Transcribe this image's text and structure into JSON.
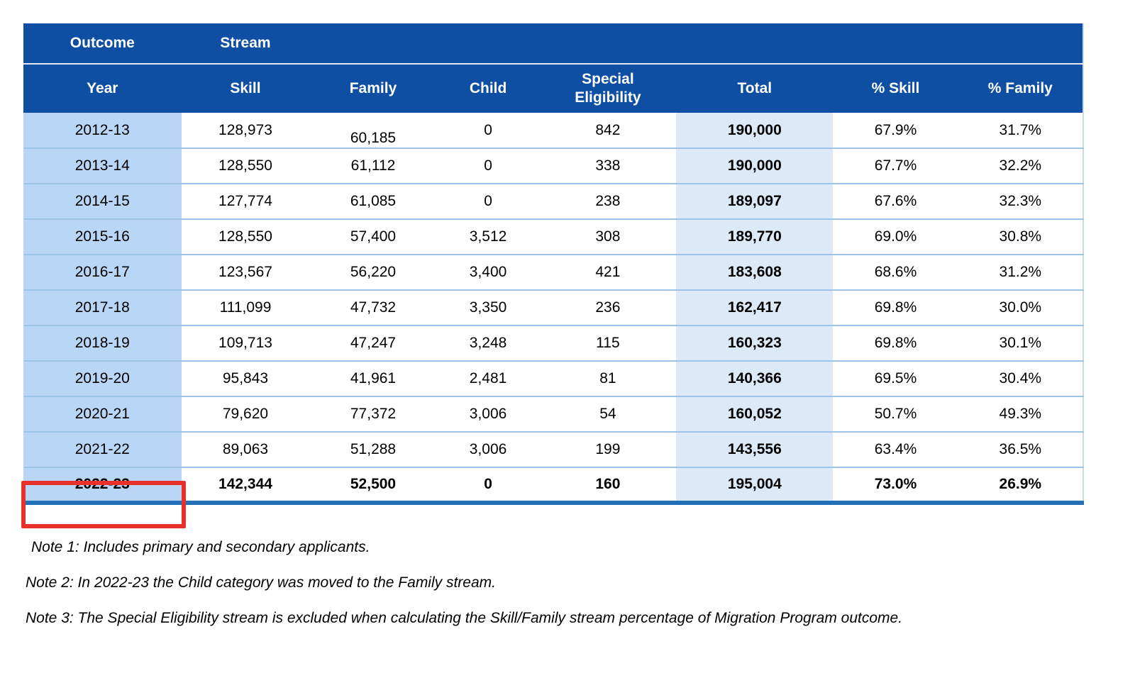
{
  "table": {
    "group_header": {
      "outcome": "Outcome",
      "stream": "Stream"
    },
    "columns": [
      "Year",
      "Skill",
      "Family",
      "Child",
      "Special Eligibility",
      "Total",
      "% Skill",
      "% Family"
    ],
    "rows": [
      {
        "year": "2012-13",
        "skill": "128,973",
        "family": "60,185",
        "child": "0",
        "special": "842",
        "total": "190,000",
        "pct_skill": "67.9%",
        "pct_family": "31.7%"
      },
      {
        "year": "2013-14",
        "skill": "128,550",
        "family": "61,112",
        "child": "0",
        "special": "338",
        "total": "190,000",
        "pct_skill": "67.7%",
        "pct_family": "32.2%"
      },
      {
        "year": "2014-15",
        "skill": "127,774",
        "family": "61,085",
        "child": "0",
        "special": "238",
        "total": "189,097",
        "pct_skill": "67.6%",
        "pct_family": "32.3%"
      },
      {
        "year": "2015-16",
        "skill": "128,550",
        "family": "57,400",
        "child": "3,512",
        "special": "308",
        "total": "189,770",
        "pct_skill": "69.0%",
        "pct_family": "30.8%"
      },
      {
        "year": "2016-17",
        "skill": "123,567",
        "family": "56,220",
        "child": "3,400",
        "special": "421",
        "total": "183,608",
        "pct_skill": "68.6%",
        "pct_family": "31.2%"
      },
      {
        "year": "2017-18",
        "skill": "111,099",
        "family": "47,732",
        "child": "3,350",
        "special": "236",
        "total": "162,417",
        "pct_skill": "69.8%",
        "pct_family": "30.0%"
      },
      {
        "year": "2018-19",
        "skill": "109,713",
        "family": "47,247",
        "child": "3,248",
        "special": "115",
        "total": "160,323",
        "pct_skill": "69.8%",
        "pct_family": "30.1%"
      },
      {
        "year": "2019-20",
        "skill": "95,843",
        "family": "41,961",
        "child": "2,481",
        "special": "81",
        "total": "140,366",
        "pct_skill": "69.5%",
        "pct_family": "30.4%"
      },
      {
        "year": "2020-21",
        "skill": "79,620",
        "family": "77,372",
        "child": "3,006",
        "special": "54",
        "total": "160,052",
        "pct_skill": "50.7%",
        "pct_family": "49.3%"
      },
      {
        "year": "2021-22",
        "skill": "89,063",
        "family": "51,288",
        "child": "3,006",
        "special": "199",
        "total": "143,556",
        "pct_skill": "63.4%",
        "pct_family": "36.5%"
      },
      {
        "year": "2022-23",
        "skill": "142,344",
        "family": "52,500",
        "child": "0",
        "special": "160",
        "total": "195,004",
        "pct_skill": "73.0%",
        "pct_family": "26.9%"
      }
    ],
    "highlighted_row_year": "2022-23"
  },
  "notes": [
    "Note 1: Includes primary and secondary applicants.",
    "Note 2: In 2022-23 the Child category was moved to the Family stream.",
    "Note 3: The Special Eligibility stream is excluded when calculating the Skill/Family stream percentage of Migration Program outcome."
  ],
  "colors": {
    "header_blue": "#0E4FA3",
    "year_col_blue": "#B9D6F7",
    "total_col_blue": "#DCE9F7",
    "row_divider": "#9DC3E6",
    "bottom_border": "#2271B8",
    "highlight_red": "#E8312B"
  }
}
